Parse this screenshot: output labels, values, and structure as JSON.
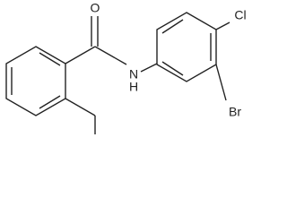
{
  "atoms": {
    "oxygen": "O",
    "nitrogen": "N",
    "hydrogen": "H",
    "chlorine": "Cl",
    "bromine": "Br"
  }
}
